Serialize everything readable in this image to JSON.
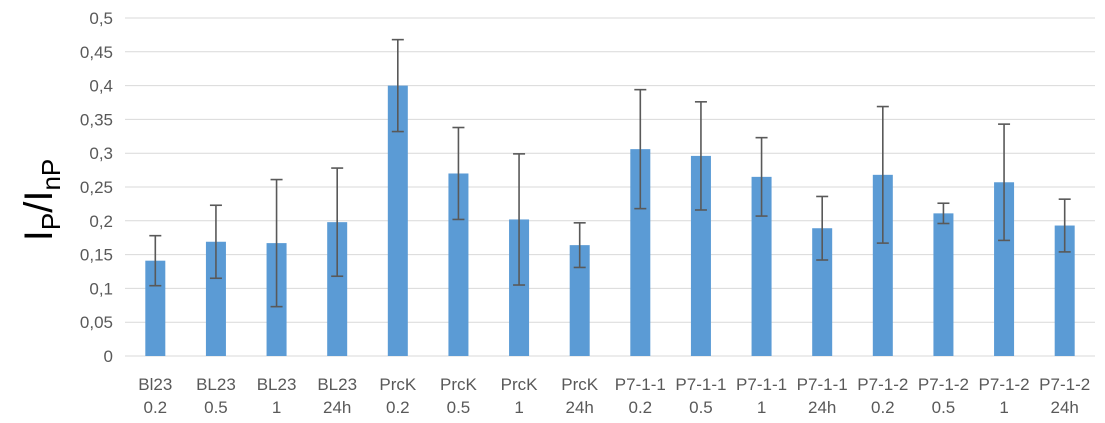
{
  "chart_data": {
    "type": "bar",
    "title": "",
    "ylabel": "I_P/I_nP",
    "ylabel_parts": {
      "main1": "I",
      "sub1": "P",
      "slash": "/",
      "main2": "I",
      "sub2": "nP"
    },
    "xlabel": "",
    "ylim": [
      0,
      0.5
    ],
    "ytick_values": [
      0,
      0.05,
      0.1,
      0.15,
      0.2,
      0.25,
      0.3,
      0.35,
      0.4,
      0.45,
      0.5
    ],
    "yticks": [
      "0",
      "0,05",
      "0,1",
      "0,15",
      "0,2",
      "0,25",
      "0,3",
      "0,35",
      "0,4",
      "0,45",
      "0,5"
    ],
    "grid": true,
    "legend": "none",
    "bar_color": "#5b9bd5",
    "error_color": "#595959",
    "grid_color": "#d9d9d9",
    "categories": [
      [
        "Bl23",
        "0.2"
      ],
      [
        "BL23",
        "0.5"
      ],
      [
        "BL23",
        "1"
      ],
      [
        "BL23",
        "24h"
      ],
      [
        "PrcK",
        "0.2"
      ],
      [
        "PrcK",
        "0.5"
      ],
      [
        "PrcK",
        "1"
      ],
      [
        "PrcK",
        "24h"
      ],
      [
        "P7-1-1",
        "0.2"
      ],
      [
        "P7-1-1",
        "0.5"
      ],
      [
        "P7-1-1",
        "1"
      ],
      [
        "P7-1-1",
        "24h"
      ],
      [
        "P7-1-2",
        "0.2"
      ],
      [
        "P7-1-2",
        "0.5"
      ],
      [
        "P7-1-2",
        "1"
      ],
      [
        "P7-1-2",
        "24h"
      ]
    ],
    "values": [
      0.141,
      0.169,
      0.167,
      0.198,
      0.4,
      0.27,
      0.202,
      0.164,
      0.306,
      0.296,
      0.265,
      0.189,
      0.268,
      0.211,
      0.257,
      0.193
    ],
    "errors": [
      0.037,
      0.054,
      0.094,
      0.08,
      0.068,
      0.068,
      0.097,
      0.033,
      0.088,
      0.08,
      0.058,
      0.047,
      0.101,
      0.015,
      0.086,
      0.039
    ]
  }
}
